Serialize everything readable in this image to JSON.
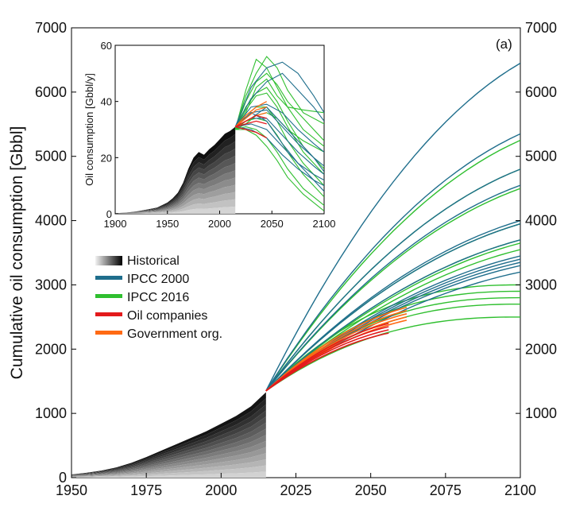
{
  "colors": {
    "ipcc2000": "#1f6e8c",
    "ipcc2016": "#2fbf2f",
    "oil_companies": "#e31a1c",
    "government": "#ff6a13",
    "historical_dark": "#111111"
  },
  "chart_data": [
    {
      "id": "main",
      "type": "line",
      "panel_tag": "(a)",
      "ylabel": "Cumulative oil consumption [Gbbl]",
      "xlim": [
        1950,
        2100
      ],
      "ylim": [
        0,
        7000
      ],
      "x_ticks": [
        "1950",
        "1975",
        "2000",
        "2025",
        "2050",
        "2075",
        "2100"
      ],
      "y_ticks_left": [
        "0",
        "1000",
        "2000",
        "3000",
        "4000",
        "5000",
        "6000",
        "7000"
      ],
      "y_ticks_right": [
        "1000",
        "2000",
        "3000",
        "4000",
        "5000",
        "6000",
        "7000"
      ],
      "legend": [
        {
          "label": "Historical",
          "swatch": "gradient"
        },
        {
          "label": "IPCC 2000",
          "color_key": "ipcc2000"
        },
        {
          "label": "IPCC 2016",
          "color_key": "ipcc2016"
        },
        {
          "label": "Oil companies",
          "color_key": "oil_companies"
        },
        {
          "label": "Government org.",
          "color_key": "government"
        }
      ],
      "historical": {
        "x": [
          1950,
          1955,
          1960,
          1965,
          1970,
          1975,
          1980,
          1985,
          1990,
          1995,
          2000,
          2005,
          2010,
          2015
        ],
        "y": [
          50,
          75,
          110,
          160,
          230,
          320,
          420,
          520,
          620,
          720,
          840,
          960,
          1110,
          1330
        ]
      },
      "projection_start": {
        "x": 2015,
        "y": 1350
      },
      "scenarios": {
        "ipcc2000": [
          6450,
          5350,
          4800,
          4550,
          4000,
          3950,
          3700,
          3450,
          3400,
          3350,
          3300,
          3200
        ],
        "ipcc2016": [
          5250,
          4800,
          4500,
          3950,
          3700,
          3650,
          3550,
          3000,
          2900,
          2800,
          2700,
          2500
        ],
        "oil_companies": [
          2250,
          2300,
          2350,
          2400
        ],
        "government": [
          2550,
          2450,
          2500,
          2600,
          2650
        ]
      }
    },
    {
      "id": "inset",
      "type": "line",
      "ylabel": "Oil consumption [Gbbl/y]",
      "xlim": [
        1900,
        2100
      ],
      "ylim": [
        0,
        60
      ],
      "x_ticks": [
        "1900",
        "1950",
        "2000",
        "2050",
        "2100"
      ],
      "y_ticks": [
        "0",
        "20",
        "40",
        "60"
      ],
      "historical": {
        "x": [
          1900,
          1910,
          1920,
          1930,
          1940,
          1950,
          1955,
          1960,
          1965,
          1970,
          1975,
          1980,
          1985,
          1990,
          1995,
          2000,
          2005,
          2010,
          2015
        ],
        "y": [
          0.2,
          0.4,
          0.8,
          1.5,
          2.2,
          4,
          5.5,
          7.5,
          11,
          16,
          20,
          22,
          21,
          23,
          24.5,
          26.5,
          28.5,
          29.5,
          31
        ]
      },
      "projection_start": {
        "x": 2015,
        "y": 31
      },
      "scenarios": {
        "ipcc2000": [
          [
            [
              2015,
              31
            ],
            [
              2030,
              45
            ],
            [
              2045,
              52
            ],
            [
              2060,
              54
            ],
            [
              2075,
              50
            ],
            [
              2090,
              42
            ],
            [
              2100,
              36
            ]
          ],
          [
            [
              2015,
              31
            ],
            [
              2030,
              41
            ],
            [
              2045,
              47
            ],
            [
              2060,
              50
            ],
            [
              2075,
              44
            ],
            [
              2090,
              38
            ],
            [
              2100,
              33
            ]
          ],
          [
            [
              2015,
              31
            ],
            [
              2030,
              38
            ],
            [
              2045,
              39
            ],
            [
              2060,
              36
            ],
            [
              2075,
              30
            ],
            [
              2090,
              25
            ],
            [
              2100,
              22
            ]
          ],
          [
            [
              2015,
              31
            ],
            [
              2030,
              36
            ],
            [
              2045,
              37
            ],
            [
              2060,
              31
            ],
            [
              2075,
              25
            ],
            [
              2090,
              20
            ],
            [
              2100,
              17
            ]
          ],
          [
            [
              2015,
              31
            ],
            [
              2030,
              34
            ],
            [
              2045,
              34
            ],
            [
              2060,
              28
            ],
            [
              2075,
              22
            ],
            [
              2090,
              17
            ],
            [
              2100,
              14
            ]
          ],
          [
            [
              2015,
              31
            ],
            [
              2030,
              32
            ],
            [
              2045,
              30
            ],
            [
              2060,
              24
            ],
            [
              2075,
              18
            ],
            [
              2090,
              14
            ],
            [
              2100,
              12
            ]
          ],
          [
            [
              2015,
              31
            ],
            [
              2030,
              30
            ],
            [
              2045,
              27
            ],
            [
              2060,
              21
            ],
            [
              2075,
              16
            ],
            [
              2090,
              12
            ],
            [
              2100,
              10
            ]
          ],
          [
            [
              2015,
              31
            ],
            [
              2030,
              34
            ],
            [
              2045,
              38
            ],
            [
              2060,
              32
            ],
            [
              2075,
              26
            ],
            [
              2090,
              20
            ],
            [
              2100,
              15
            ]
          ],
          [
            [
              2015,
              31
            ],
            [
              2030,
              36
            ],
            [
              2045,
              33
            ],
            [
              2060,
              25
            ],
            [
              2075,
              18
            ],
            [
              2090,
              12
            ],
            [
              2100,
              8
            ]
          ]
        ],
        "ipcc2016": [
          [
            [
              2015,
              30
            ],
            [
              2025,
              44
            ],
            [
              2035,
              55
            ],
            [
              2045,
              52
            ],
            [
              2055,
              45
            ],
            [
              2065,
              38
            ],
            [
              2080,
              30
            ],
            [
              2100,
              24
            ]
          ],
          [
            [
              2015,
              30
            ],
            [
              2025,
              42
            ],
            [
              2035,
              50
            ],
            [
              2045,
              56
            ],
            [
              2055,
              52
            ],
            [
              2065,
              44
            ],
            [
              2080,
              36
            ],
            [
              2100,
              32
            ]
          ],
          [
            [
              2015,
              30
            ],
            [
              2025,
              40
            ],
            [
              2035,
              47
            ],
            [
              2045,
              50
            ],
            [
              2055,
              46
            ],
            [
              2065,
              40
            ],
            [
              2080,
              34
            ],
            [
              2100,
              26
            ]
          ],
          [
            [
              2015,
              30
            ],
            [
              2025,
              38
            ],
            [
              2035,
              43
            ],
            [
              2045,
              45
            ],
            [
              2055,
              40
            ],
            [
              2065,
              33
            ],
            [
              2080,
              24
            ],
            [
              2100,
              16
            ]
          ],
          [
            [
              2015,
              30
            ],
            [
              2025,
              35
            ],
            [
              2035,
              38
            ],
            [
              2045,
              38
            ],
            [
              2055,
              33
            ],
            [
              2065,
              26
            ],
            [
              2080,
              18
            ],
            [
              2100,
              10
            ]
          ],
          [
            [
              2015,
              30
            ],
            [
              2025,
              33
            ],
            [
              2035,
              34
            ],
            [
              2045,
              33
            ],
            [
              2055,
              28
            ],
            [
              2065,
              22
            ],
            [
              2080,
              14
            ],
            [
              2100,
              6
            ]
          ],
          [
            [
              2015,
              30
            ],
            [
              2025,
              31
            ],
            [
              2035,
              30
            ],
            [
              2045,
              27
            ],
            [
              2055,
              22
            ],
            [
              2065,
              16
            ],
            [
              2080,
              9
            ],
            [
              2100,
              3
            ]
          ],
          [
            [
              2015,
              30
            ],
            [
              2025,
              30
            ],
            [
              2035,
              28
            ],
            [
              2045,
              24
            ],
            [
              2055,
              19
            ],
            [
              2065,
              13
            ],
            [
              2080,
              7
            ],
            [
              2100,
              1
            ]
          ],
          [
            [
              2015,
              30
            ],
            [
              2025,
              36
            ],
            [
              2035,
              45
            ],
            [
              2045,
              48
            ],
            [
              2055,
              42
            ],
            [
              2065,
              38
            ],
            [
              2080,
              37
            ],
            [
              2100,
              36
            ]
          ],
          [
            [
              2015,
              30
            ],
            [
              2025,
              37
            ],
            [
              2035,
              42
            ],
            [
              2045,
              43
            ],
            [
              2055,
              38
            ],
            [
              2065,
              31
            ],
            [
              2080,
              22
            ],
            [
              2100,
              14
            ]
          ],
          [
            [
              2015,
              30
            ],
            [
              2025,
              32
            ],
            [
              2035,
              35
            ],
            [
              2045,
              36
            ],
            [
              2055,
              34
            ],
            [
              2065,
              30
            ],
            [
              2080,
              26
            ],
            [
              2100,
              22
            ]
          ]
        ],
        "oil_companies": [
          [
            [
              2015,
              31
            ],
            [
              2025,
              33
            ],
            [
              2035,
              35
            ],
            [
              2045,
              34
            ]
          ],
          [
            [
              2015,
              31
            ],
            [
              2025,
              32
            ],
            [
              2035,
              33
            ],
            [
              2045,
              32
            ]
          ],
          [
            [
              2015,
              31
            ],
            [
              2025,
              30
            ],
            [
              2035,
              29
            ],
            [
              2045,
              27
            ]
          ]
        ],
        "government": [
          [
            [
              2015,
              31
            ],
            [
              2025,
              34
            ],
            [
              2035,
              37
            ],
            [
              2045,
              38
            ]
          ],
          [
            [
              2015,
              31
            ],
            [
              2025,
              35
            ],
            [
              2035,
              38
            ],
            [
              2045,
              40
            ]
          ],
          [
            [
              2015,
              31
            ],
            [
              2025,
              33
            ],
            [
              2035,
              35
            ],
            [
              2045,
              36
            ]
          ]
        ]
      }
    }
  ]
}
